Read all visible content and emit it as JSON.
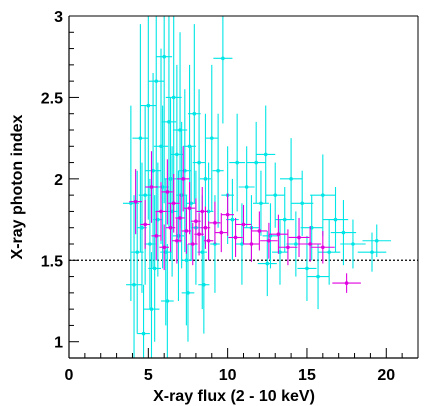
{
  "chart_data": {
    "type": "scatter",
    "title": "",
    "xlabel": "X-ray flux (2 - 10 keV)",
    "ylabel": "X-ray photon index",
    "xlim": [
      0,
      22
    ],
    "ylim": [
      0.9,
      3.0
    ],
    "x_major_ticks": [
      0,
      5,
      10,
      15,
      20
    ],
    "y_major_ticks": [
      1,
      1.5,
      2,
      2.5,
      3
    ],
    "x_tick_labels": [
      "0",
      "5",
      "10",
      "15",
      "20"
    ],
    "y_tick_labels": [
      "1",
      "1.5",
      "2",
      "2.5",
      "3"
    ],
    "reference_line": {
      "y": 1.5,
      "style": "dotted",
      "color": "#000000"
    },
    "grid": false,
    "legend": "none",
    "series": [
      {
        "color": "#00e5e5",
        "points": [
          [
            3.9,
            1.85,
            0.5,
            0.6
          ],
          [
            4.1,
            1.35,
            0.5,
            0.55
          ],
          [
            4.3,
            1.55,
            0.4,
            0.5
          ],
          [
            4.5,
            2.25,
            0.5,
            0.7
          ],
          [
            4.6,
            1.7,
            0.3,
            0.4
          ],
          [
            4.8,
            1.9,
            0.4,
            0.55
          ],
          [
            5.0,
            2.45,
            0.5,
            0.7
          ],
          [
            5.1,
            1.6,
            0.35,
            0.4
          ],
          [
            5.3,
            2.05,
            0.5,
            0.6
          ],
          [
            5.4,
            1.45,
            0.4,
            0.45
          ],
          [
            5.5,
            2.6,
            0.5,
            0.8
          ],
          [
            5.6,
            1.75,
            0.3,
            0.35
          ],
          [
            5.8,
            2.2,
            0.45,
            0.6
          ],
          [
            5.9,
            1.95,
            0.4,
            0.5
          ],
          [
            6.0,
            2.75,
            0.5,
            0.9
          ],
          [
            6.1,
            1.55,
            0.35,
            0.45
          ],
          [
            6.3,
            2.35,
            0.45,
            0.65
          ],
          [
            6.4,
            2.0,
            0.4,
            0.5
          ],
          [
            6.5,
            1.8,
            0.35,
            0.4
          ],
          [
            6.6,
            2.5,
            0.5,
            0.7
          ],
          [
            6.8,
            2.15,
            0.4,
            0.55
          ],
          [
            6.9,
            1.65,
            0.35,
            0.4
          ],
          [
            7.0,
            2.3,
            0.45,
            0.6
          ],
          [
            7.1,
            1.9,
            0.35,
            0.45
          ],
          [
            7.3,
            2.05,
            0.4,
            0.5
          ],
          [
            7.4,
            1.5,
            0.35,
            0.4
          ],
          [
            7.6,
            2.2,
            0.4,
            0.5
          ],
          [
            7.7,
            1.85,
            0.3,
            0.35
          ],
          [
            7.9,
            2.4,
            0.4,
            0.55
          ],
          [
            8.0,
            1.7,
            0.3,
            0.35
          ],
          [
            8.2,
            2.1,
            0.4,
            0.45
          ],
          [
            8.4,
            1.55,
            0.3,
            0.35
          ],
          [
            8.6,
            2.0,
            0.35,
            0.4
          ],
          [
            8.8,
            1.8,
            0.3,
            0.3
          ],
          [
            9.0,
            2.25,
            0.4,
            0.45
          ],
          [
            9.2,
            1.6,
            0.3,
            0.3
          ],
          [
            9.4,
            2.05,
            0.35,
            0.35
          ],
          [
            9.7,
            2.74,
            0.6,
            0.4
          ],
          [
            10.0,
            1.9,
            0.4,
            0.3
          ],
          [
            10.3,
            1.75,
            0.4,
            0.25
          ],
          [
            10.6,
            2.1,
            0.5,
            0.3
          ],
          [
            10.9,
            1.6,
            0.4,
            0.25
          ],
          [
            11.2,
            1.95,
            0.5,
            0.25
          ],
          [
            11.5,
            1.7,
            0.5,
            0.2
          ],
          [
            11.8,
            2.1,
            0.6,
            0.25
          ],
          [
            12.1,
            1.85,
            0.5,
            0.2
          ],
          [
            12.4,
            2.15,
            0.6,
            0.3
          ],
          [
            12.7,
            1.65,
            0.5,
            0.2
          ],
          [
            13.0,
            1.9,
            0.6,
            0.2
          ],
          [
            13.3,
            1.55,
            0.5,
            0.2
          ],
          [
            13.6,
            1.75,
            0.6,
            0.2
          ],
          [
            14.0,
            2.0,
            0.7,
            0.25
          ],
          [
            14.3,
            1.6,
            0.6,
            0.2
          ],
          [
            14.7,
            1.85,
            0.7,
            0.2
          ],
          [
            15.0,
            1.45,
            0.6,
            0.2
          ],
          [
            15.3,
            1.7,
            0.7,
            0.2
          ],
          [
            15.7,
            1.4,
            0.7,
            0.2
          ],
          [
            16.0,
            1.9,
            0.8,
            0.25
          ],
          [
            16.4,
            1.55,
            0.7,
            0.2
          ],
          [
            16.8,
            1.75,
            0.8,
            0.2
          ],
          [
            17.3,
            1.67,
            0.8,
            0.2
          ],
          [
            17.9,
            1.6,
            0.8,
            0.15
          ],
          [
            19.4,
            1.62,
            0.9,
            0.1
          ],
          [
            19.1,
            1.55,
            0.9,
            0.12
          ],
          [
            5.2,
            1.2,
            0.5,
            0.35
          ],
          [
            6.2,
            1.25,
            0.4,
            0.35
          ],
          [
            4.7,
            1.05,
            0.4,
            0.3
          ],
          [
            7.5,
            1.3,
            0.4,
            0.3
          ],
          [
            8.5,
            1.35,
            0.35,
            0.3
          ],
          [
            12.5,
            1.48,
            0.6,
            0.2
          ]
        ]
      },
      {
        "color": "#e000e0",
        "points": [
          [
            4.2,
            1.86,
            0.4,
            0.2
          ],
          [
            4.8,
            1.72,
            0.3,
            0.15
          ],
          [
            5.2,
            1.95,
            0.4,
            0.22
          ],
          [
            5.5,
            1.65,
            0.3,
            0.15
          ],
          [
            5.8,
            1.8,
            0.35,
            0.18
          ],
          [
            6.0,
            1.58,
            0.3,
            0.14
          ],
          [
            6.2,
            1.92,
            0.35,
            0.2
          ],
          [
            6.4,
            1.7,
            0.3,
            0.15
          ],
          [
            6.6,
            1.85,
            0.35,
            0.18
          ],
          [
            6.8,
            1.62,
            0.3,
            0.14
          ],
          [
            7.0,
            1.76,
            0.3,
            0.15
          ],
          [
            7.2,
            2.0,
            0.4,
            0.2
          ],
          [
            7.4,
            1.68,
            0.3,
            0.14
          ],
          [
            7.6,
            1.82,
            0.35,
            0.16
          ],
          [
            7.8,
            1.6,
            0.3,
            0.13
          ],
          [
            8.0,
            1.74,
            0.3,
            0.14
          ],
          [
            8.2,
            1.66,
            0.3,
            0.13
          ],
          [
            8.4,
            1.8,
            0.35,
            0.15
          ],
          [
            8.6,
            1.7,
            0.3,
            0.13
          ],
          [
            8.8,
            1.62,
            0.3,
            0.12
          ],
          [
            9.2,
            1.73,
            0.35,
            0.13
          ],
          [
            9.6,
            1.67,
            0.4,
            0.12
          ],
          [
            10.0,
            1.78,
            0.4,
            0.13
          ],
          [
            10.5,
            1.64,
            0.45,
            0.12
          ],
          [
            11.0,
            1.72,
            0.5,
            0.12
          ],
          [
            11.5,
            1.6,
            0.5,
            0.11
          ],
          [
            12.0,
            1.68,
            0.5,
            0.12
          ],
          [
            12.6,
            1.62,
            0.55,
            0.11
          ],
          [
            13.2,
            1.66,
            0.6,
            0.12
          ],
          [
            13.8,
            1.58,
            0.6,
            0.11
          ],
          [
            14.5,
            1.64,
            0.65,
            0.12
          ],
          [
            15.2,
            1.6,
            0.7,
            0.11
          ],
          [
            16.0,
            1.58,
            0.75,
            0.1
          ],
          [
            17.5,
            1.36,
            0.9,
            0.06
          ]
        ]
      }
    ]
  }
}
